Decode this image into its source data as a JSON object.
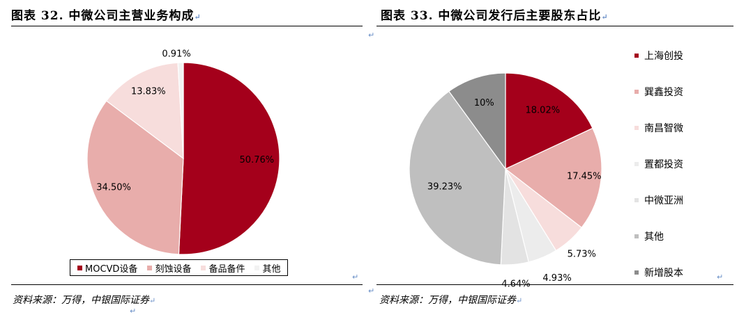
{
  "colors": {
    "accent": "#a4001b",
    "pink": "#e8adab",
    "light_pink": "#f7dddc",
    "very_light": "#f2f2f2",
    "light_gray": "#e6e6e6",
    "gray": "#bfbfbf",
    "dark_gray": "#8c8c8c",
    "return_mark": "#6a8fc7"
  },
  "return_mark": "↵",
  "left": {
    "title": "图表 32. 中微公司主营业务构成",
    "source": "资料来源：万得，中银国际证券"
  },
  "right": {
    "title": "图表 33. 中微公司发行后主要股东占比",
    "source": "资料来源：万得，中银国际证券"
  },
  "chart_data": [
    {
      "type": "pie",
      "title": "",
      "legend_position": "bottom",
      "labels": [
        "MOCVD设备",
        "刻蚀设备",
        "备品备件",
        "其他"
      ],
      "values": [
        50.76,
        34.5,
        13.83,
        0.91
      ],
      "value_labels": [
        "50.76%",
        "34.50%",
        "13.83%",
        "0.91%"
      ],
      "colors": [
        "#a4001b",
        "#e8adab",
        "#f7dddc",
        "#f2f2f2"
      ]
    },
    {
      "type": "pie",
      "title": "",
      "legend_position": "right",
      "labels": [
        "上海创投",
        "巽鑫投资",
        "南昌智微",
        "置都投资",
        "中微亚洲",
        "其他",
        "新增股本"
      ],
      "values": [
        18.02,
        17.45,
        5.73,
        4.93,
        4.64,
        39.23,
        10
      ],
      "value_labels": [
        "18.02%",
        "17.45%",
        "5.73%",
        "4.93%",
        "4.64%",
        "39.23%",
        "10%"
      ],
      "colors": [
        "#a4001b",
        "#e8adab",
        "#f7dddc",
        "#ececec",
        "#e3e3e3",
        "#bfbfbf",
        "#8c8c8c"
      ]
    }
  ]
}
